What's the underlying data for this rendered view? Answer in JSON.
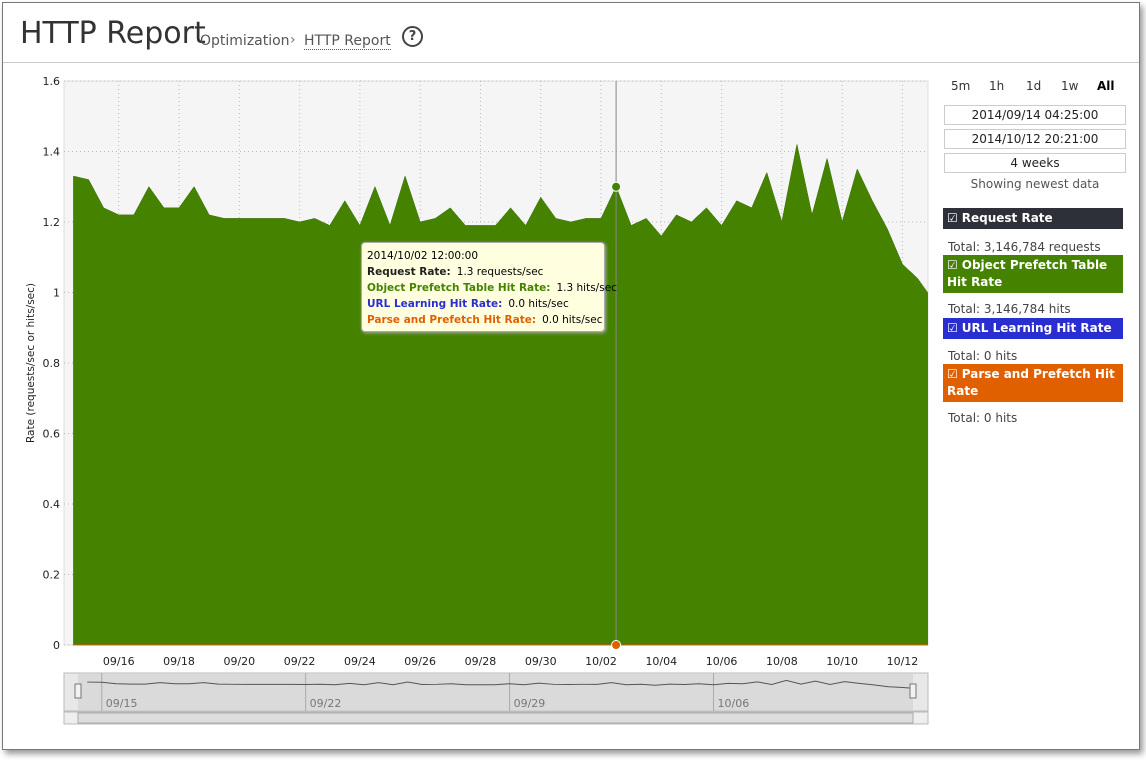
{
  "header": {
    "title": "HTTP Report",
    "breadcrumb": [
      "Optimization",
      "HTTP Report"
    ]
  },
  "chart_data": {
    "type": "area",
    "y_label": "Rate (requests/sec or hits/sec)",
    "x": [
      "2014/09/14 12:00:00",
      "2014/09/15 00:00:00",
      "2014/09/15 12:00:00",
      "2014/09/16 00:00:00",
      "2014/09/16 12:00:00",
      "2014/09/17 00:00:00",
      "2014/09/17 12:00:00",
      "2014/09/18 00:00:00",
      "2014/09/18 12:00:00",
      "2014/09/19 00:00:00",
      "2014/09/19 12:00:00",
      "2014/09/20 00:00:00",
      "2014/09/20 12:00:00",
      "2014/09/21 00:00:00",
      "2014/09/21 12:00:00",
      "2014/09/22 00:00:00",
      "2014/09/22 12:00:00",
      "2014/09/23 00:00:00",
      "2014/09/23 12:00:00",
      "2014/09/24 00:00:00",
      "2014/09/24 12:00:00",
      "2014/09/25 00:00:00",
      "2014/09/25 12:00:00",
      "2014/09/26 00:00:00",
      "2014/09/26 12:00:00",
      "2014/09/27 00:00:00",
      "2014/09/27 12:00:00",
      "2014/09/28 00:00:00",
      "2014/09/28 12:00:00",
      "2014/09/29 00:00:00",
      "2014/09/29 12:00:00",
      "2014/09/30 00:00:00",
      "2014/09/30 12:00:00",
      "2014/10/01 00:00:00",
      "2014/10/01 12:00:00",
      "2014/10/02 00:00:00",
      "2014/10/02 12:00:00",
      "2014/10/03 00:00:00",
      "2014/10/03 12:00:00",
      "2014/10/04 00:00:00",
      "2014/10/04 12:00:00",
      "2014/10/05 00:00:00",
      "2014/10/05 12:00:00",
      "2014/10/06 00:00:00",
      "2014/10/06 12:00:00",
      "2014/10/07 00:00:00",
      "2014/10/07 12:00:00",
      "2014/10/08 00:00:00",
      "2014/10/08 12:00:00",
      "2014/10/09 00:00:00",
      "2014/10/09 12:00:00",
      "2014/10/10 00:00:00",
      "2014/10/10 12:00:00",
      "2014/10/11 00:00:00",
      "2014/10/11 12:00:00",
      "2014/10/12 00:00:00",
      "2014/10/12 12:00:00",
      "2014/10/12 20:00:00"
    ],
    "series": [
      {
        "name": "Request Rate",
        "color": "#2d3038",
        "values": [
          1.33,
          1.32,
          1.24,
          1.22,
          1.22,
          1.3,
          1.24,
          1.24,
          1.3,
          1.22,
          1.21,
          1.21,
          1.21,
          1.21,
          1.21,
          1.2,
          1.21,
          1.19,
          1.26,
          1.19,
          1.3,
          1.19,
          1.33,
          1.2,
          1.21,
          1.24,
          1.19,
          1.19,
          1.19,
          1.24,
          1.19,
          1.27,
          1.21,
          1.2,
          1.21,
          1.21,
          1.3,
          1.19,
          1.21,
          1.16,
          1.22,
          1.2,
          1.24,
          1.19,
          1.26,
          1.24,
          1.34,
          1.2,
          1.42,
          1.22,
          1.38,
          1.2,
          1.35,
          1.26,
          1.18,
          1.08,
          1.04,
          1.0
        ]
      },
      {
        "name": "Object Prefetch Table Hit Rate",
        "color": "#458200",
        "values": [
          1.33,
          1.32,
          1.24,
          1.22,
          1.22,
          1.3,
          1.24,
          1.24,
          1.3,
          1.22,
          1.21,
          1.21,
          1.21,
          1.21,
          1.21,
          1.2,
          1.21,
          1.19,
          1.26,
          1.19,
          1.3,
          1.19,
          1.33,
          1.2,
          1.21,
          1.24,
          1.19,
          1.19,
          1.19,
          1.24,
          1.19,
          1.27,
          1.21,
          1.2,
          1.21,
          1.21,
          1.3,
          1.19,
          1.21,
          1.16,
          1.22,
          1.2,
          1.24,
          1.19,
          1.26,
          1.24,
          1.34,
          1.2,
          1.42,
          1.22,
          1.38,
          1.2,
          1.35,
          1.26,
          1.18,
          1.08,
          1.04,
          1.0
        ]
      },
      {
        "name": "URL Learning Hit Rate",
        "color": "#2a2ed0",
        "values": [
          0,
          0,
          0,
          0,
          0,
          0,
          0,
          0,
          0,
          0,
          0,
          0,
          0,
          0,
          0,
          0,
          0,
          0,
          0,
          0,
          0,
          0,
          0,
          0,
          0,
          0,
          0,
          0,
          0,
          0,
          0,
          0,
          0,
          0,
          0,
          0,
          0,
          0,
          0,
          0,
          0,
          0,
          0,
          0,
          0,
          0,
          0,
          0,
          0,
          0,
          0,
          0,
          0,
          0,
          0,
          0,
          0,
          0
        ]
      },
      {
        "name": "Parse and Prefetch Hit Rate",
        "color": "#e06000",
        "values": [
          0,
          0,
          0,
          0,
          0,
          0,
          0,
          0,
          0,
          0,
          0,
          0,
          0,
          0,
          0,
          0,
          0,
          0,
          0,
          0,
          0,
          0,
          0,
          0,
          0,
          0,
          0,
          0,
          0,
          0,
          0,
          0,
          0,
          0,
          0,
          0,
          0,
          0,
          0,
          0,
          0,
          0,
          0,
          0,
          0,
          0,
          0,
          0,
          0,
          0,
          0,
          0,
          0,
          0,
          0,
          0,
          0,
          0
        ]
      }
    ],
    "xlim": [
      "2014/09/14 04:25:00",
      "2014/10/12 20:21:00"
    ],
    "xticks": [
      {
        "value": "2014/09/16 00:00:00",
        "label": "09/16"
      },
      {
        "value": "2014/09/18 00:00:00",
        "label": "09/18"
      },
      {
        "value": "2014/09/20 00:00:00",
        "label": "09/20"
      },
      {
        "value": "2014/09/22 00:00:00",
        "label": "09/22"
      },
      {
        "value": "2014/09/24 00:00:00",
        "label": "09/24"
      },
      {
        "value": "2014/09/26 00:00:00",
        "label": "09/26"
      },
      {
        "value": "2014/09/28 00:00:00",
        "label": "09/28"
      },
      {
        "value": "2014/09/30 00:00:00",
        "label": "09/30"
      },
      {
        "value": "2014/10/02 00:00:00",
        "label": "10/02"
      },
      {
        "value": "2014/10/04 00:00:00",
        "label": "10/04"
      },
      {
        "value": "2014/10/06 00:00:00",
        "label": "10/06"
      },
      {
        "value": "2014/10/08 00:00:00",
        "label": "10/08"
      },
      {
        "value": "2014/10/10 00:00:00",
        "label": "10/10"
      },
      {
        "value": "2014/10/12 00:00:00",
        "label": "10/12"
      }
    ],
    "ylim": [
      0,
      1.6
    ],
    "yticks": [
      0,
      0.2,
      0.4,
      0.6,
      0.8,
      1,
      1.2,
      1.4,
      1.6
    ],
    "grid": true,
    "navigator_xticks": [
      {
        "value": "2014/09/15 00:00:00",
        "label": "09/15"
      },
      {
        "value": "2014/09/22 00:00:00",
        "label": "09/22"
      },
      {
        "value": "2014/09/29 00:00:00",
        "label": "09/29"
      },
      {
        "value": "2014/10/06 00:00:00",
        "label": "10/06"
      }
    ],
    "tooltip": {
      "time": "2014/10/02 12:00:00",
      "rows": [
        {
          "name": "Request Rate:",
          "value": "1.3 requests/sec"
        },
        {
          "name": "Object Prefetch Table Hit Rate:",
          "value": "1.3 hits/sec"
        },
        {
          "name": "URL Learning Hit Rate:",
          "value": "0.0 hits/sec"
        },
        {
          "name": "Parse and Prefetch Hit Rate:",
          "value": "0.0 hits/sec"
        }
      ]
    }
  },
  "controls": {
    "ranges": [
      "5m",
      "1h",
      "1d",
      "1w",
      "All"
    ],
    "start": "2014/09/14 04:25:00",
    "end": "2014/10/12 20:21:00",
    "duration": "4 weeks",
    "note": "Showing newest data"
  },
  "legend_totals": [
    "Total: 3,146,784 requests",
    "Total: 3,146,784 hits",
    "Total: 0 hits",
    "Total: 0 hits"
  ]
}
